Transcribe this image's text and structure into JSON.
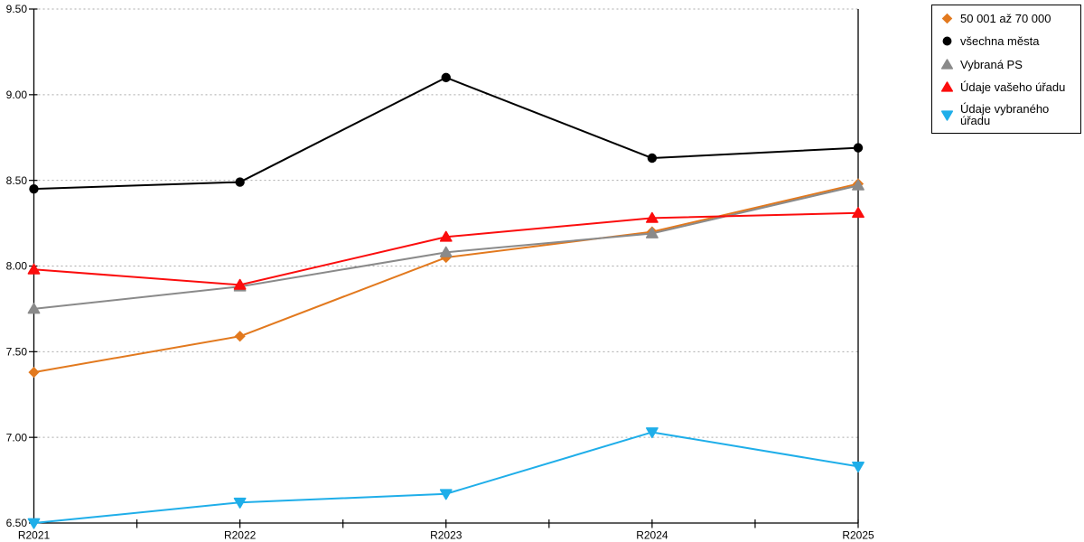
{
  "chart_data": {
    "type": "line",
    "title": "",
    "xlabel": "",
    "ylabel": "",
    "categories": [
      "R2021",
      "R2022",
      "R2023",
      "R2024",
      "R2025"
    ],
    "series": [
      {
        "name": "50 001 až 70 000",
        "color": "#E2791E",
        "marker": "diamond",
        "values": [
          7.38,
          7.59,
          8.05,
          8.2,
          8.48
        ]
      },
      {
        "name": "všechna města",
        "color": "#000000",
        "marker": "circle",
        "values": [
          8.45,
          8.49,
          9.1,
          8.63,
          8.69
        ]
      },
      {
        "name": "Vybraná PS",
        "color": "#8A8A8A",
        "marker": "triangle-up",
        "values": [
          7.75,
          7.88,
          8.08,
          8.19,
          8.47
        ]
      },
      {
        "name": "Údaje vašeho úřadu",
        "color": "#FB0D0D",
        "marker": "triangle-up",
        "values": [
          7.98,
          7.89,
          8.17,
          8.28,
          8.31
        ]
      },
      {
        "name": "Údaje vybraného úřadu",
        "color": "#1FAEE9",
        "marker": "triangle-down",
        "values": [
          6.5,
          6.62,
          6.67,
          7.03,
          6.83
        ]
      }
    ],
    "ylim": [
      6.5,
      9.5
    ],
    "yticks": [
      9.5,
      9.0,
      8.5,
      8.0,
      7.5,
      7.0,
      6.5
    ],
    "ytick_labels": [
      "9.50",
      "9.00",
      "8.50",
      "8.00",
      "7.50",
      "7.00",
      "6.50"
    ],
    "grid": "horizontal-dotted",
    "legend_position": "outside-top-right",
    "minor_x_ticks_between_categories": true
  },
  "colors": {
    "grid": "#ABABAB",
    "axis": "#000000",
    "text": "#000000",
    "legend_border": "#000000",
    "background": "#FFFFFF"
  }
}
